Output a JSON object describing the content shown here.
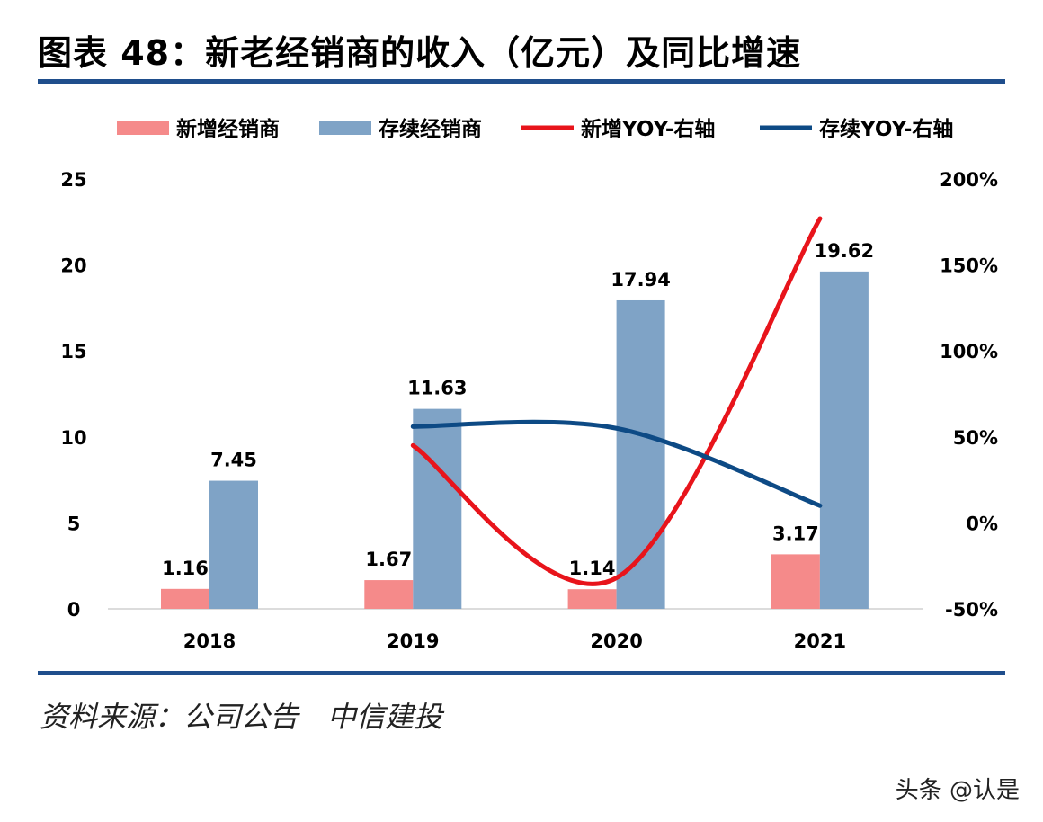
{
  "title": "图表 48：新老经销商的收入（亿元）及同比增速",
  "source": "资料来源：公司公告　中信建投",
  "watermark": "头条 @认是",
  "chart_data": {
    "type": "bar+line",
    "categories": [
      "2018",
      "2019",
      "2020",
      "2021"
    ],
    "series": [
      {
        "name": "新增经销商",
        "kind": "bar",
        "axis": "left",
        "color": "#f58a8a",
        "values": [
          1.16,
          1.67,
          1.14,
          3.17
        ],
        "labels": [
          "1.16",
          "1.67",
          "1.14",
          "3.17"
        ]
      },
      {
        "name": "存续经销商",
        "kind": "bar",
        "axis": "left",
        "color": "#7fa3c6",
        "values": [
          7.45,
          11.63,
          17.94,
          19.62
        ],
        "labels": [
          "7.45",
          "11.63",
          "17.94",
          "19.62"
        ]
      },
      {
        "name": "新增YOY-右轴",
        "kind": "line",
        "axis": "right",
        "color": "#e8141b",
        "values": [
          null,
          45,
          -32,
          177
        ]
      },
      {
        "name": "存续YOY-右轴",
        "kind": "line",
        "axis": "right",
        "color": "#0d4a85",
        "values": [
          null,
          56,
          55,
          10
        ]
      }
    ],
    "yleft": {
      "lim": [
        0,
        25
      ],
      "ticks": [
        "0",
        "5",
        "10",
        "15",
        "20",
        "25"
      ]
    },
    "yright": {
      "lim": [
        -50,
        200
      ],
      "ticks": [
        "-50%",
        "0%",
        "50%",
        "100%",
        "150%",
        "200%"
      ]
    },
    "legend": "top",
    "grid": false
  }
}
